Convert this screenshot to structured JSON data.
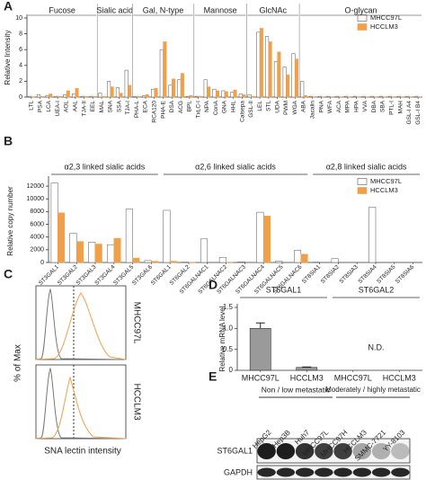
{
  "panels": [
    "A",
    "B",
    "C",
    "D",
    "E"
  ],
  "chart_data": [
    {
      "type": "bar",
      "y_label": "Relative Intensity",
      "groups": [
        "Fucose",
        "Sialic acid",
        "Gal, N-type",
        "Mannose",
        "GlcNAc",
        "O-glycan"
      ],
      "categories": [
        "LTL",
        "PSA",
        "LCA",
        "UEA-I",
        "AOL",
        "AAL",
        "TJA-II",
        "EEL",
        "MAL",
        "SNA",
        "SSA",
        "TJA-I",
        "PHA-L",
        "ECA",
        "RCA120",
        "PHA-E",
        "DSA",
        "ACG",
        "BPL",
        "TxLC-I",
        "NPA",
        "ConA",
        "GNA",
        "HHL",
        "Calsepa",
        "GSL-II",
        "LEL",
        "STL",
        "UDA",
        "PWM",
        "WGA",
        "ABA",
        "Jacalin",
        "PNA",
        "WFA",
        "ACA",
        "MPA",
        "HPA",
        "VVA",
        "DBA",
        "SBA",
        "PTL-I",
        "MAH",
        "GSL-I A4",
        "GSL-I B4"
      ],
      "series": [
        {
          "name": "MHCC97L",
          "color": "#ffffff",
          "values": [
            0.1,
            0.3,
            0.2,
            0.1,
            0.3,
            0.4,
            0.1,
            0.1,
            0.5,
            2.0,
            1.2,
            3.4,
            0.1,
            0.2,
            1.0,
            6.0,
            1.5,
            2.2,
            0.1,
            0.1,
            2.2,
            1.0,
            0.8,
            0.6,
            0.4,
            0.3,
            8.2,
            7.7,
            4.5,
            3.8,
            5.5,
            2.0,
            0.1,
            0.1,
            0.1,
            0.1,
            0.1,
            0.1,
            0.1,
            0.1,
            0.1,
            0.1,
            0.1,
            0.1,
            0.1
          ]
        },
        {
          "name": "HCCLM3",
          "color": "#f0a04b",
          "values": [
            0.05,
            0.1,
            0.4,
            0.1,
            0.8,
            1.1,
            0.1,
            0.1,
            0.1,
            1.3,
            0.5,
            1.5,
            0.1,
            0.3,
            1.1,
            7.0,
            2.3,
            3.0,
            0.2,
            0.1,
            1.3,
            0.8,
            0.7,
            0.9,
            0.3,
            0.1,
            8.7,
            7.0,
            5.7,
            2.8,
            4.8,
            0.2,
            0.05,
            0.05,
            0.05,
            0.05,
            0.05,
            0.05,
            0.05,
            0.05,
            0.05,
            0.05,
            0.05,
            0.05,
            0.05
          ]
        }
      ],
      "ylim": [
        0,
        10
      ],
      "yticks": [
        0,
        2,
        4,
        6,
        8,
        10
      ],
      "legend": "upper right"
    },
    {
      "type": "bar",
      "y_label": "Relative copy number",
      "groups": [
        "α2,3 linked sialic acids",
        "α2,6 linked sialic acids",
        "α2,8 linked sialic acids"
      ],
      "categories": [
        "ST3GAL1",
        "ST3GAL2",
        "ST3GAL3",
        "ST3GAL4",
        "ST3GAL5",
        "ST3GAL6",
        "ST6GAL1",
        "ST6GAL2",
        "ST6GALNAC1",
        "ST6GALNAC2",
        "ST6GALNAC3",
        "ST6GALNAC4",
        "ST6GALNAC5",
        "ST6GALNAC6",
        "ST8SIA1",
        "ST8SIA2",
        "ST8SIA3",
        "ST8SIA4",
        "ST8SIA5",
        "ST8SIA6"
      ],
      "series": [
        {
          "name": "MHCC97L",
          "color": "#ffffff",
          "values": [
            12500,
            4600,
            3200,
            2800,
            8400,
            300,
            8200,
            50,
            3700,
            800,
            100,
            7900,
            200,
            1900,
            50,
            600,
            0,
            8700,
            0,
            0
          ]
        },
        {
          "name": "HCCLM3",
          "color": "#f0a04b",
          "values": [
            7800,
            3300,
            2900,
            3800,
            700,
            200,
            200,
            50,
            0,
            50,
            0,
            7300,
            0,
            1300,
            0,
            0,
            0,
            0,
            0,
            0
          ]
        }
      ],
      "ylim": [
        0,
        13000
      ],
      "yticks": [
        0,
        2000,
        4000,
        6000,
        8000,
        10000,
        12000
      ],
      "legend": "upper right"
    },
    {
      "type": "bar",
      "y_label": "Relative mRNA level",
      "groups": [
        "ST6GAL1",
        "ST6GAL2"
      ],
      "categories": [
        "MHCC97L",
        "HCCLM3",
        "MHCC97L",
        "HCCLM3"
      ],
      "values": [
        1.0,
        0.07,
        null,
        null
      ],
      "errors": [
        0.13,
        0.01,
        null,
        null
      ],
      "annotation": "N.D.",
      "color": "#9a9a9a",
      "ylim": [
        0,
        1.5
      ],
      "yticks": [
        0,
        0.5,
        {
          "value": 1,
          "label": "1.0"
        },
        1.5
      ]
    }
  ],
  "flow": {
    "y_label": "% of Max",
    "x_label": "SNA lectin intensity",
    "rows": [
      "MHCC97L",
      "HCCLM3"
    ]
  },
  "blot": {
    "groups": [
      "Non / low metastatic",
      "Moderately / highly metastatic"
    ],
    "lanes": [
      "HepG2",
      "Hep3B",
      "Huh7",
      "MHCC97L",
      "MHCC97H",
      "HCCLM3",
      "SMMC-7721",
      "YY-8103"
    ],
    "rows": [
      "ST6GAL1",
      "GAPDH"
    ]
  }
}
